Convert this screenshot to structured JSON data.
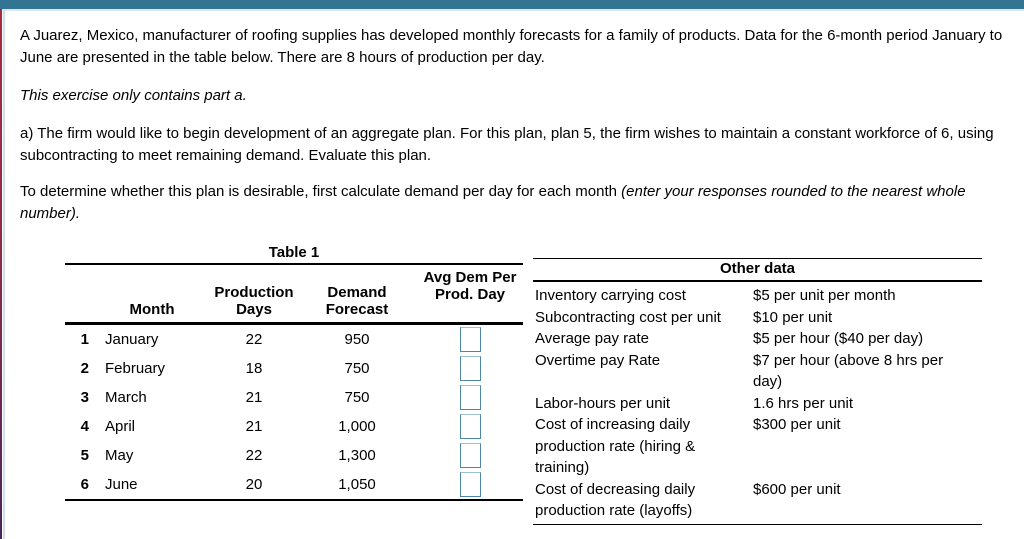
{
  "page": {
    "paragraph1": "A Juarez, Mexico, manufacturer of roofing supplies has developed monthly forecasts for a family of products. Data for the 6-month period January to June are presented in the table below. There are 8 hours of production per day.",
    "paragraph2": "This exercise only contains part a.",
    "paragraph3": "a) The firm would like to begin development of an aggregate plan. For this plan, plan 5, the firm wishes to maintain a constant workforce of 6, using subcontracting to meet remaining demand. Evaluate this plan.",
    "paragraph4_normal": "To determine whether this plan is desirable, first calculate demand per day for each month ",
    "paragraph4_italic": "(enter your responses rounded to the nearest whole number)."
  },
  "table1": {
    "title": "Table 1",
    "headers": {
      "month": "Month",
      "production_days": "Production\nDays",
      "demand_forecast": "Demand\nForecast",
      "avg_dem_per_prod_day": "Avg Dem Per\nProd. Day"
    },
    "rows": [
      {
        "num": "1",
        "month": "January",
        "days": "22",
        "forecast": "950",
        "input_value": ""
      },
      {
        "num": "2",
        "month": "February",
        "days": "18",
        "forecast": "750",
        "input_value": ""
      },
      {
        "num": "3",
        "month": "March",
        "days": "21",
        "forecast": "750",
        "input_value": ""
      },
      {
        "num": "4",
        "month": "April",
        "days": "21",
        "forecast": "1,000",
        "input_value": ""
      },
      {
        "num": "5",
        "month": "May",
        "days": "22",
        "forecast": "1,300",
        "input_value": ""
      },
      {
        "num": "6",
        "month": "June",
        "days": "20",
        "forecast": "1,050",
        "input_value": ""
      }
    ]
  },
  "other_data": {
    "title": "Other data",
    "rows": [
      {
        "label": "Inventory carrying cost",
        "value": "$5 per unit per month"
      },
      {
        "label": "Subcontracting cost per unit",
        "value": "$10 per unit"
      },
      {
        "label": "Average pay rate",
        "value": "$5 per hour ($40 per day)"
      },
      {
        "label": "Overtime pay Rate",
        "value": "$7 per hour (above 8 hrs per day)"
      },
      {
        "label": "Labor-hours per unit",
        "value": "1.6 hrs per unit"
      },
      {
        "label": "Cost of increasing daily production rate (hiring & training)",
        "value": "$300 per unit"
      },
      {
        "label": "Cost of decreasing daily production rate (layoffs)",
        "value": "$600 per unit"
      }
    ]
  },
  "colors": {
    "top_bar": "#327592",
    "top_bar_underline": "#dce6f2",
    "left_edge_top": "#a62c42",
    "left_edge_bottom": "#44285a",
    "input_border": "#4e87a6",
    "rule": "#000000"
  }
}
